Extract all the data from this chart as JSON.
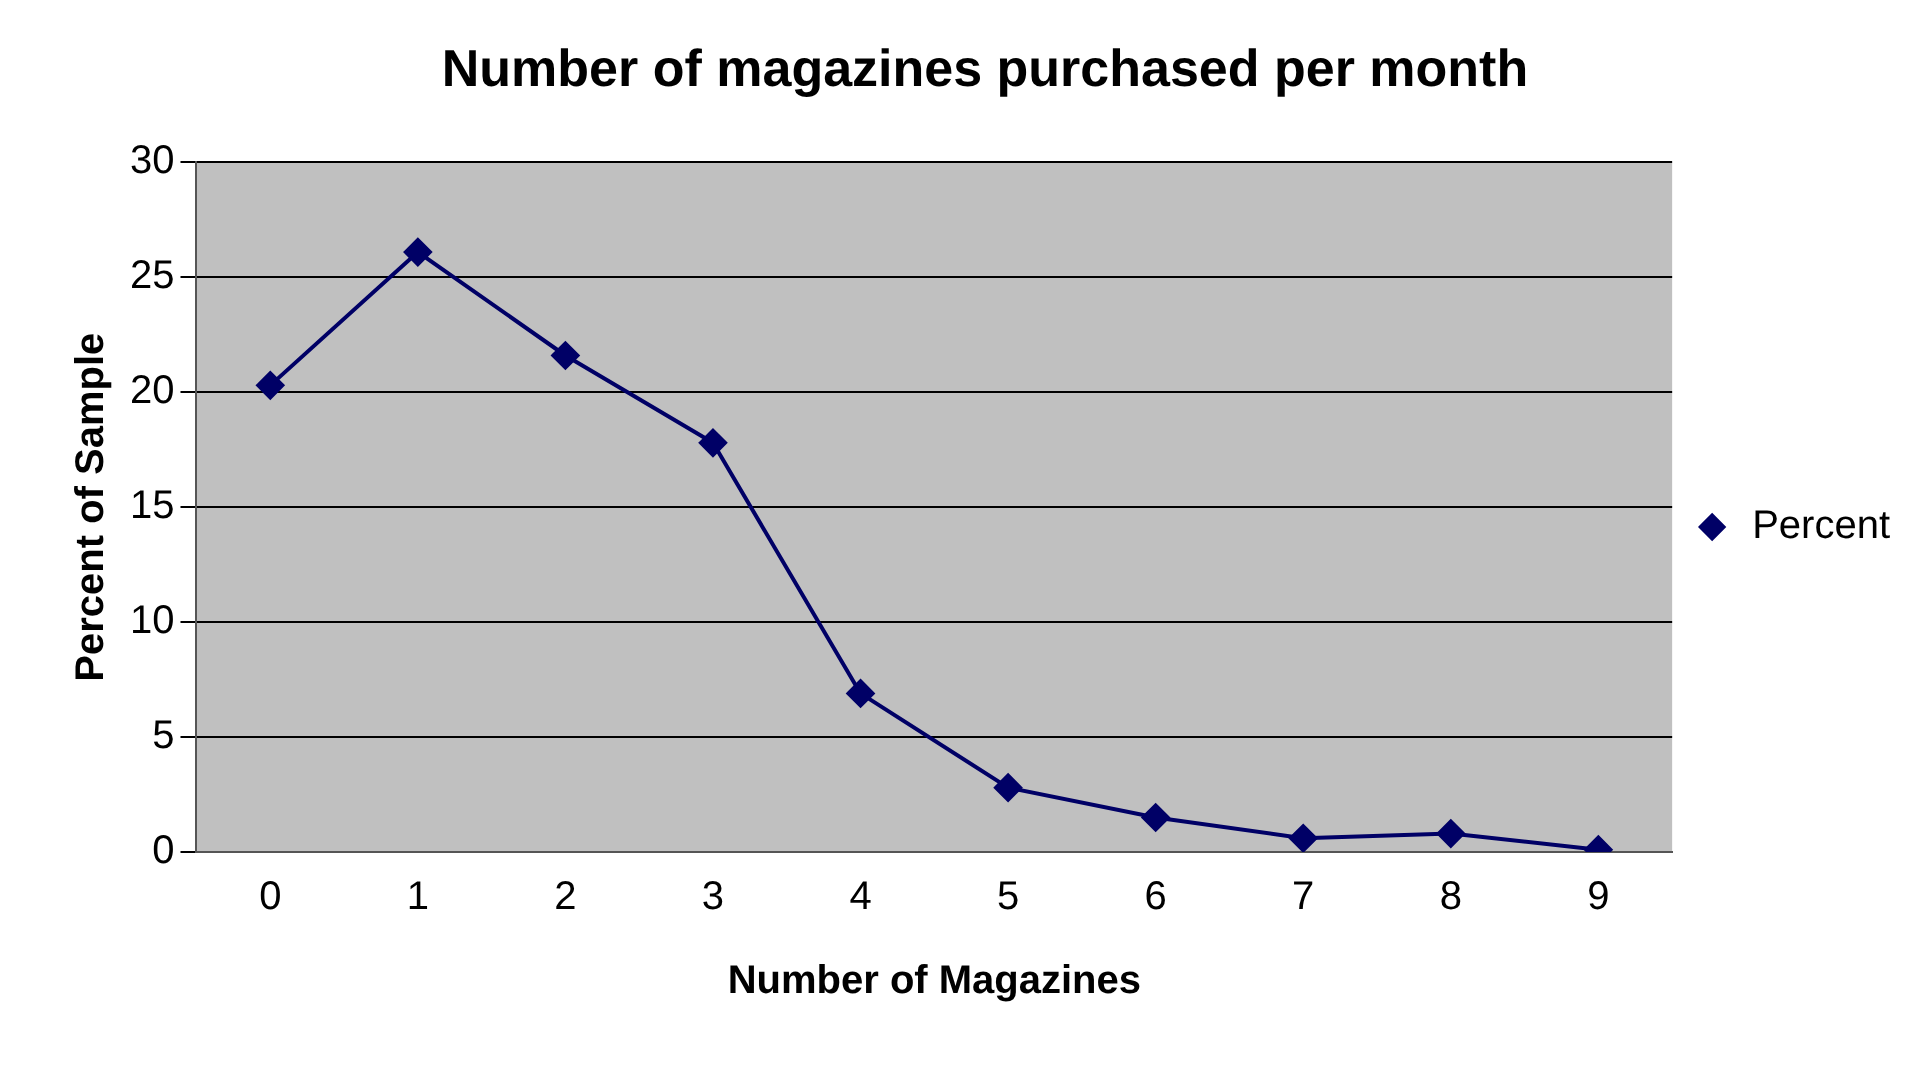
{
  "chart_data": {
    "type": "line",
    "title": "Number of magazines purchased per month",
    "xlabel": "Number of Magazines",
    "ylabel": "Percent of Sample",
    "categories": [
      "0",
      "1",
      "2",
      "3",
      "4",
      "5",
      "6",
      "7",
      "8",
      "9"
    ],
    "series": [
      {
        "name": "Percent",
        "color": "#000066",
        "values": [
          20.3,
          26.1,
          21.6,
          17.8,
          6.9,
          2.8,
          1.5,
          0.6,
          0.8,
          0.1
        ]
      }
    ],
    "ylim": [
      0,
      30
    ],
    "yticks": [
      0,
      5,
      10,
      15,
      20,
      25,
      30
    ],
    "grid": "y",
    "legend": "right",
    "marker": "diamond",
    "line_style": "solid"
  }
}
